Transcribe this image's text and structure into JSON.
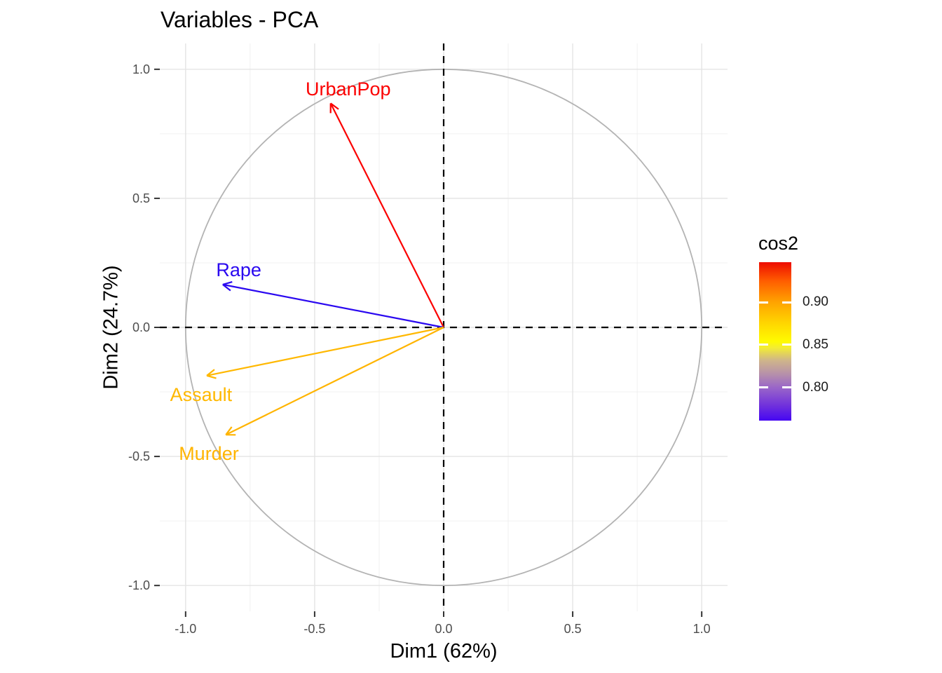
{
  "chart_data": {
    "type": "scatter",
    "subtype": "pca-variable-correlation-circle",
    "title": "Variables - PCA",
    "xlabel": "Dim1 (62%)",
    "ylabel": "Dim2 (24.7%)",
    "xlim": [
      -1.1,
      1.1
    ],
    "ylim": [
      -1.1,
      1.1
    ],
    "x_ticks": [
      -1.0,
      -0.5,
      0.0,
      0.5,
      1.0
    ],
    "x_tick_labels": [
      "-1.0",
      "-0.5",
      "0.0",
      "0.5",
      "1.0"
    ],
    "y_ticks": [
      1.0,
      0.5,
      0.0,
      -0.5,
      -1.0
    ],
    "y_tick_labels": [
      "1.0",
      "0.5",
      "0.0",
      "-0.5",
      "-1.0"
    ],
    "grid": true,
    "unit_circle": true,
    "zero_lines_dashed": true,
    "variables": [
      {
        "name": "UrbanPop",
        "x": -0.438,
        "y": 0.868,
        "cos2": 0.945,
        "color": "#FB0000",
        "label_x": -0.37,
        "label_y": 0.924
      },
      {
        "name": "Rape",
        "x": -0.856,
        "y": 0.166,
        "cos2": 0.761,
        "color": "#2A08F0",
        "label_x": -0.794,
        "label_y": 0.223
      },
      {
        "name": "Assault",
        "x": -0.918,
        "y": -0.187,
        "cos2": 0.878,
        "color": "#FFB800",
        "label_x": -0.94,
        "label_y": -0.261
      },
      {
        "name": "Murder",
        "x": -0.844,
        "y": -0.416,
        "cos2": 0.885,
        "color": "#FFB400",
        "label_x": -0.91,
        "label_y": -0.489
      }
    ],
    "legend": {
      "title": "cos2",
      "position": "right",
      "range": [
        0.761,
        0.947
      ],
      "tick_values": [
        0.9,
        0.85,
        0.8
      ],
      "tick_labels": [
        "0.90",
        "0.85",
        "0.80"
      ],
      "gradient_stops_bottom_to_top": [
        {
          "color": "#4506F2",
          "pos": 0
        },
        {
          "color": "#7233DB",
          "pos": 10
        },
        {
          "color": "#9A66C8",
          "pos": 21
        },
        {
          "color": "#B893A8",
          "pos": 30
        },
        {
          "color": "#CFB58A",
          "pos": 38
        },
        {
          "color": "#F3EC33",
          "pos": 46
        },
        {
          "color": "#FFFB00",
          "pos": 50
        },
        {
          "color": "#FFD400",
          "pos": 62
        },
        {
          "color": "#FFA200",
          "pos": 75
        },
        {
          "color": "#FF5E00",
          "pos": 88
        },
        {
          "color": "#ED0C00",
          "pos": 100
        }
      ]
    },
    "theme": {
      "background": "#FFFFFF",
      "grid_major": "#E4E4E4",
      "grid_minor": "#F0F0F0",
      "circle_color": "#B3B3B3",
      "zero_line_color": "#000000",
      "tick_mark_color": "#333333",
      "tick_label_color": "#4D4D4D",
      "text_color": "#000000"
    }
  }
}
